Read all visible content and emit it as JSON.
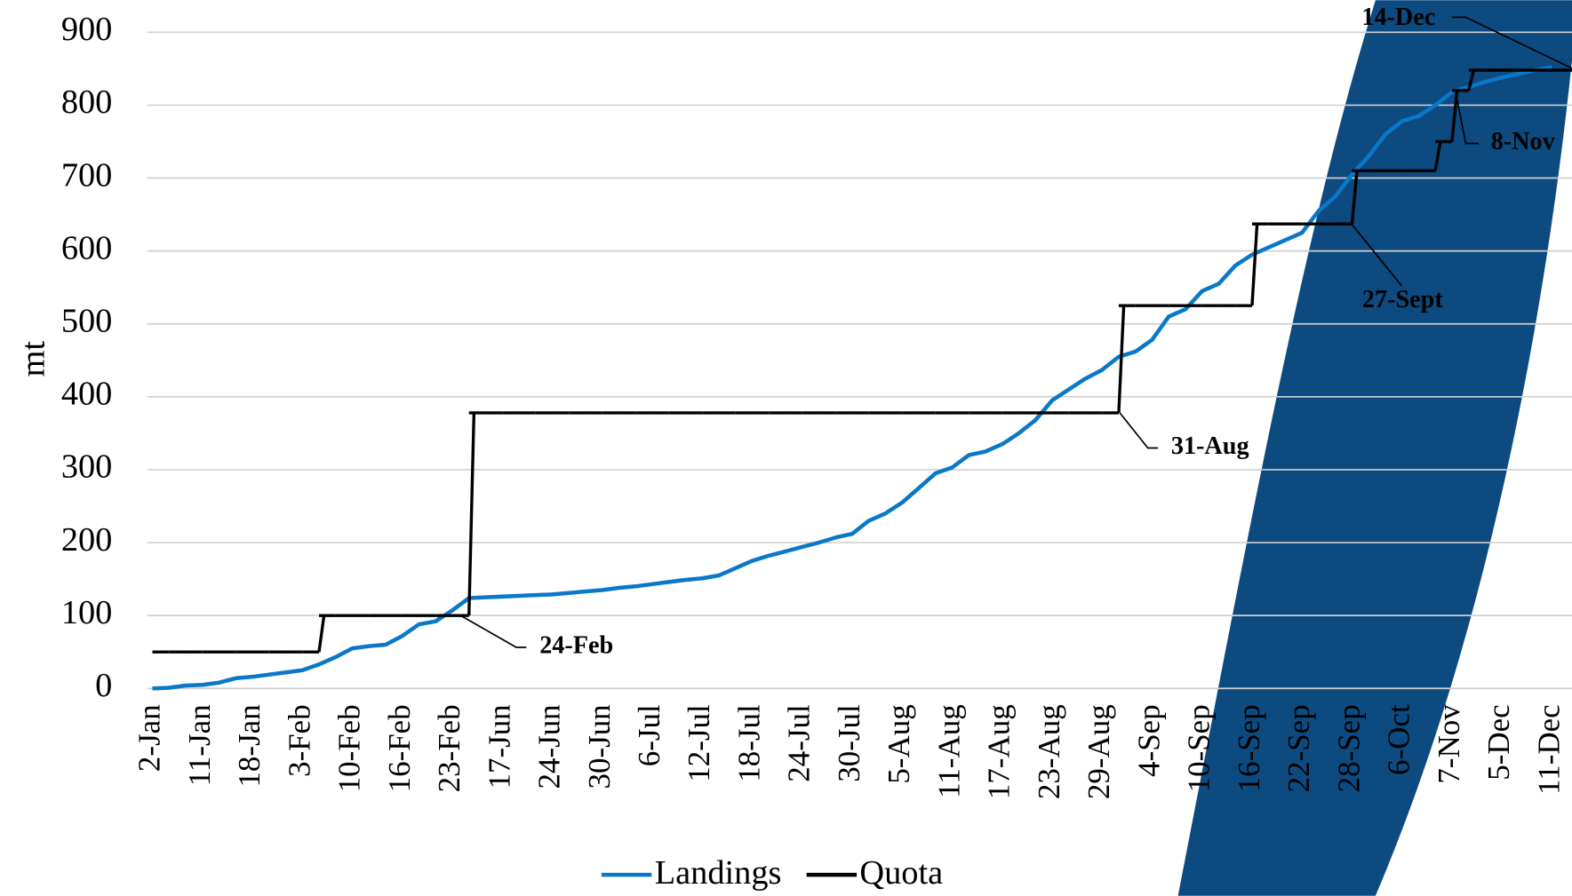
{
  "chart_data": {
    "type": "line",
    "y_label": "mt",
    "categories": [
      "2-Jan",
      null,
      null,
      "11-Jan",
      null,
      null,
      "18-Jan",
      null,
      null,
      "3-Feb",
      null,
      null,
      "10-Feb",
      null,
      null,
      "16-Feb",
      null,
      null,
      "23-Feb",
      null,
      null,
      "17-Jun",
      null,
      null,
      "24-Jun",
      null,
      null,
      "30-Jun",
      null,
      null,
      "6-Jul",
      null,
      null,
      "12-Jul",
      null,
      null,
      "18-Jul",
      null,
      null,
      "24-Jul",
      null,
      null,
      "30-Jul",
      null,
      null,
      "5-Aug",
      null,
      null,
      "11-Aug",
      null,
      null,
      "17-Aug",
      null,
      null,
      "23-Aug",
      null,
      null,
      "29-Aug",
      null,
      null,
      "4-Sep",
      null,
      null,
      "10-Sep",
      null,
      null,
      "16-Sep",
      null,
      null,
      "22-Sep",
      null,
      null,
      "28-Sep",
      null,
      null,
      "6-Oct",
      null,
      null,
      "7-Nov",
      null,
      null,
      "5-Dec",
      null,
      null,
      "11-Dec"
    ],
    "series": [
      {
        "name": "Landings",
        "color": "#0a78c8",
        "values": [
          0,
          1,
          4,
          5,
          8,
          14,
          16,
          19,
          22,
          25,
          33,
          43,
          55,
          58,
          60,
          72,
          88,
          92,
          107,
          124,
          125,
          126,
          127,
          128,
          129,
          131,
          133,
          135,
          138,
          140,
          143,
          146,
          149,
          151,
          155,
          165,
          175,
          182,
          188,
          194,
          200,
          207,
          212,
          230,
          240,
          255,
          275,
          295,
          303,
          320,
          325,
          335,
          350,
          368,
          395,
          410,
          425,
          437,
          455,
          462,
          478,
          510,
          520,
          545,
          555,
          580,
          595,
          605,
          615,
          625,
          655,
          675,
          705,
          730,
          760,
          778,
          785,
          800,
          818,
          825,
          832,
          838,
          843,
          848,
          852
        ]
      },
      {
        "name": "Quota",
        "color": "#000000",
        "drawstyle": "steps-post",
        "values": [
          50,
          50,
          50,
          50,
          50,
          50,
          50,
          50,
          50,
          50,
          100,
          100,
          100,
          100,
          100,
          100,
          100,
          100,
          100,
          378,
          378,
          378,
          378,
          378,
          378,
          378,
          378,
          378,
          378,
          378,
          378,
          378,
          378,
          378,
          378,
          378,
          378,
          378,
          378,
          378,
          378,
          378,
          378,
          378,
          378,
          378,
          378,
          378,
          378,
          378,
          378,
          378,
          378,
          378,
          378,
          378,
          378,
          378,
          525,
          525,
          525,
          525,
          525,
          525,
          525,
          525,
          637,
          637,
          637,
          637,
          637,
          637,
          710,
          710,
          710,
          710,
          710,
          750,
          820,
          848,
          848,
          848,
          848,
          848,
          848
        ]
      }
    ],
    "ylim": [
      0,
      900
    ],
    "yticks": [
      0,
      100,
      200,
      300,
      400,
      500,
      600,
      700,
      800,
      900
    ],
    "grid": true,
    "annotations": [
      "24-Feb",
      "31-Aug",
      "27-Sept",
      "8-Nov",
      "14-Dec"
    ],
    "legend": "bottom"
  }
}
